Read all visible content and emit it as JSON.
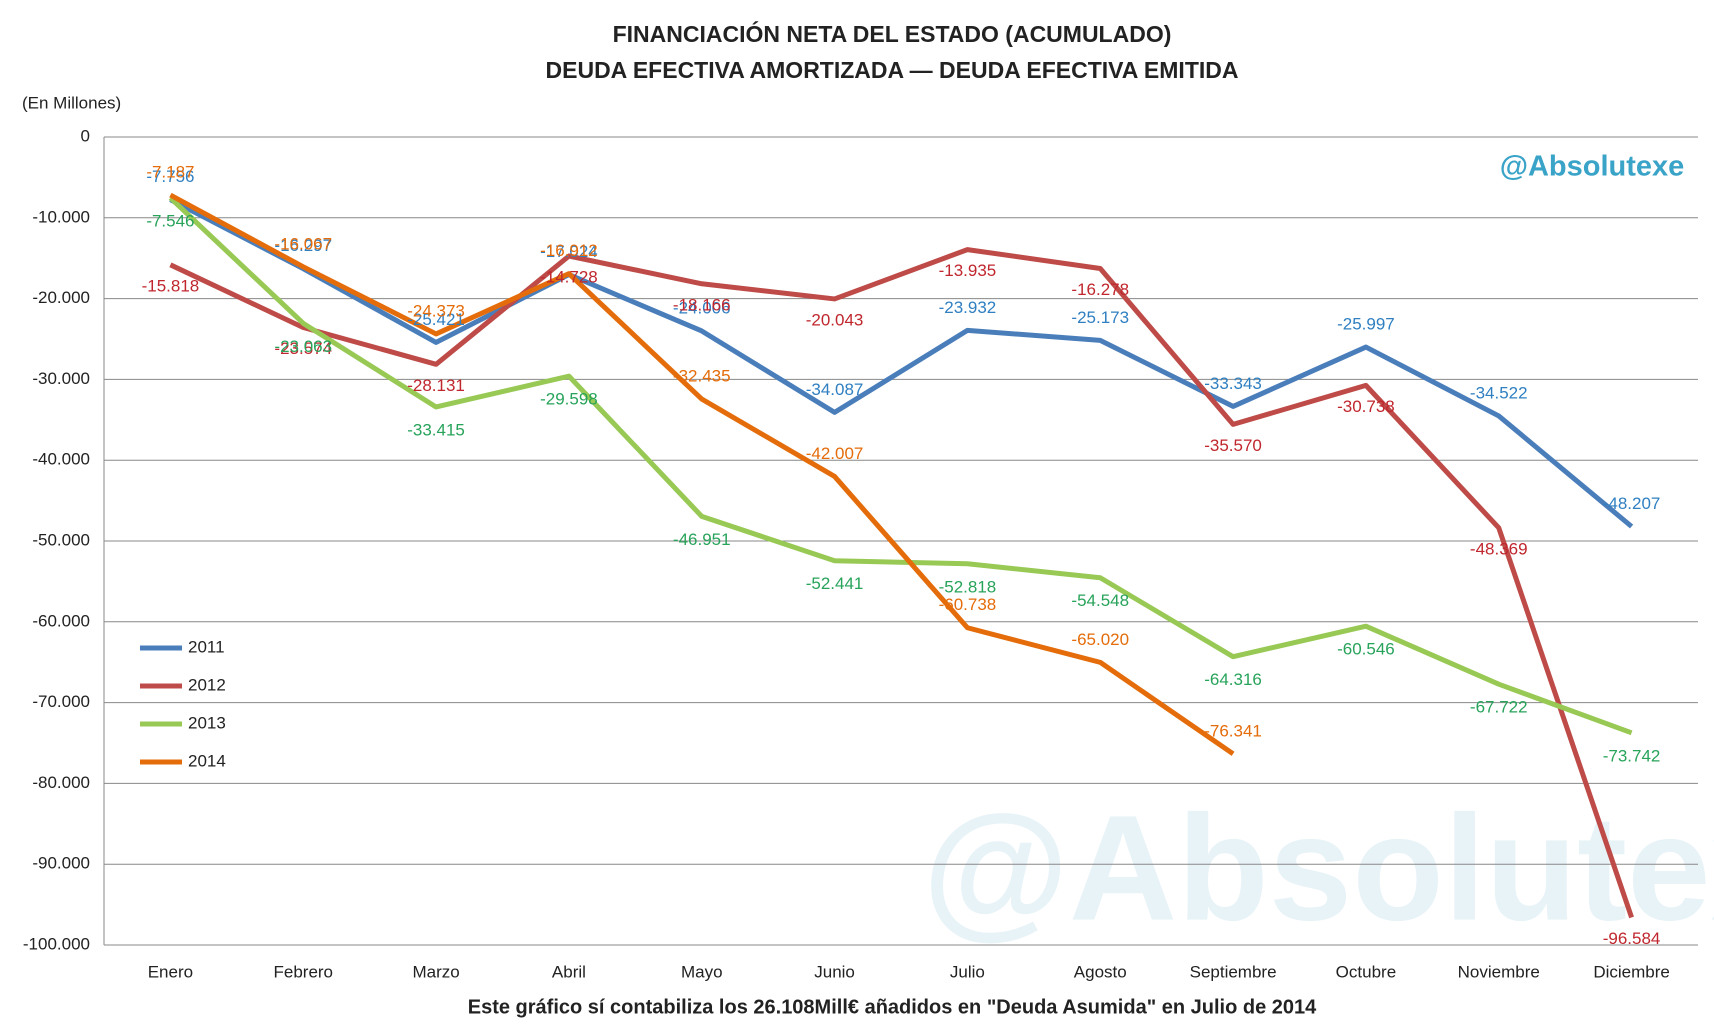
{
  "chart_data": {
    "type": "line",
    "title": "FINANCIACIÓN NETA DEL ESTADO (ACUMULADO)",
    "subtitle": "DEUDA EFECTIVA AMORTIZADA — DEUDA EFECTIVA EMITIDA",
    "y_unit": "(En Millones)",
    "note": "Este gráfico sí contabiliza los 26.108Mill€ añadidos en \"Deuda Asumida\" en Julio de 2014",
    "watermark": "@Absolutexe",
    "categories": [
      "Enero",
      "Febrero",
      "Marzo",
      "Abril",
      "Mayo",
      "Junio",
      "Julio",
      "Agosto",
      "Septiembre",
      "Octubre",
      "Noviembre",
      "Diciembre"
    ],
    "series": [
      {
        "name": "2011",
        "color": "#4a7ebb",
        "label_color": "#2f7fc1",
        "values": [
          -7756,
          -16297,
          -25421,
          -17024,
          -24006,
          -34087,
          -23932,
          -25173,
          -33343,
          -25997,
          -34522,
          -48207
        ],
        "value_labels": [
          "-7.756",
          "-16.297",
          "-25.421",
          "-17.024",
          "-24.006",
          "-34.087",
          "-23.932",
          "-25.173",
          "-33.343",
          "-25.997",
          "-34.522",
          "-48.207"
        ]
      },
      {
        "name": "2012",
        "color": "#be4b48",
        "label_color": "#c0262d",
        "values": [
          -15818,
          -23574,
          -28131,
          -14728,
          -18166,
          -20043,
          -13935,
          -16278,
          -35570,
          -30738,
          -48369,
          -96584
        ],
        "value_labels": [
          "-15.818",
          "-23.574",
          "-28.131",
          "-14.728",
          "-18.166",
          "-20.043",
          "-13.935",
          "-16.278",
          "-35.570",
          "-30.738",
          "-48.369",
          "-96.584"
        ]
      },
      {
        "name": "2013",
        "color": "#98c954",
        "label_color": "#27a35a",
        "values": [
          -7546,
          -23063,
          -33415,
          -29598,
          -46951,
          -52441,
          -52818,
          -54548,
          -64316,
          -60546,
          -67722,
          -73742
        ],
        "value_labels": [
          "-7.546",
          "-23.063",
          "-33.415",
          "-29.598",
          "-46.951",
          "-52.441",
          "-52.818",
          "-54.548",
          "-64.316",
          "-60.546",
          "-67.722",
          "-73.742"
        ]
      },
      {
        "name": "2014",
        "color": "#e46c0a",
        "label_color": "#e46c0a",
        "values": [
          -7187,
          -16067,
          -24373,
          -16912,
          -32435,
          -42007,
          -60738,
          -65020,
          -76341,
          null,
          null,
          null
        ],
        "value_labels": [
          "-7.187",
          "-16.067",
          "-24.373",
          "-16.912",
          "-32.435",
          "-42.007",
          "-60.738",
          "-65.020",
          "-76.341",
          null,
          null,
          null
        ]
      }
    ],
    "ylim": [
      -100000,
      0
    ],
    "yticks": [
      0,
      {
        "value": -10000,
        "label": "-10.000"
      },
      {
        "value": -20000,
        "label": "-20.000"
      },
      {
        "value": -30000,
        "label": "-30.000"
      },
      {
        "value": -40000,
        "label": "-40.000"
      },
      {
        "value": -50000,
        "label": "-50.000"
      },
      {
        "value": -60000,
        "label": "-60.000"
      },
      {
        "value": -70000,
        "label": "-70.000"
      },
      {
        "value": -80000,
        "label": "-80.000"
      },
      {
        "value": -90000,
        "label": "-90.000"
      },
      {
        "value": -100000,
        "label": "-100.000"
      }
    ],
    "grid": true,
    "legend": "left"
  }
}
